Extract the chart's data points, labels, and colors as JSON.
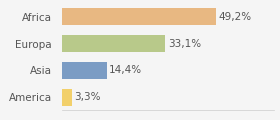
{
  "categories": [
    "America",
    "Asia",
    "Europa",
    "Africa"
  ],
  "values": [
    3.3,
    14.4,
    33.1,
    49.2
  ],
  "labels": [
    "3,3%",
    "14,4%",
    "33,1%",
    "49,2%"
  ],
  "colors": [
    "#f2d06b",
    "#7b9cc4",
    "#b8c98a",
    "#e8b882"
  ],
  "xlim": [
    0,
    68
  ],
  "background_color": "#f5f5f5",
  "bar_height": 0.6,
  "label_fontsize": 7.5,
  "tick_fontsize": 7.5
}
